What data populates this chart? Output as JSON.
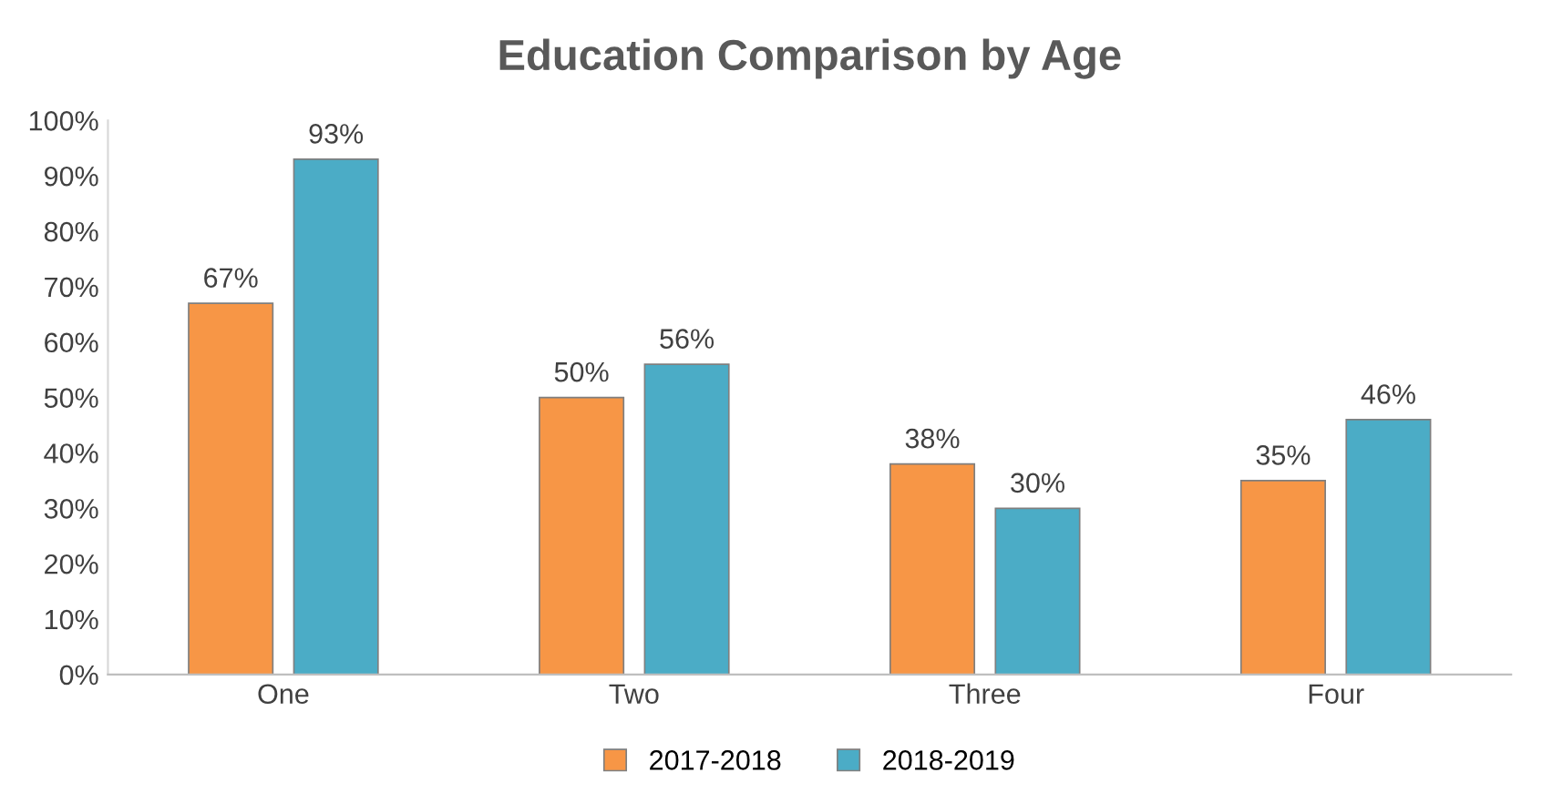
{
  "chart_data": {
    "type": "bar",
    "title": "Education Comparison by Age",
    "categories": [
      "One",
      "Two",
      "Three",
      "Four"
    ],
    "series": [
      {
        "name": "2017-2018",
        "color": "#f79646",
        "values": [
          67,
          50,
          38,
          35
        ],
        "value_labels": [
          "67%",
          "50%",
          "38%",
          "35%"
        ]
      },
      {
        "name": "2018-2019",
        "color": "#4bacc6",
        "values": [
          93,
          56,
          30,
          46
        ],
        "value_labels": [
          "93%",
          "56%",
          "30%",
          "46%"
        ]
      }
    ],
    "ylim": [
      0,
      100
    ],
    "yticks": [
      {
        "value": 0,
        "label": "0%"
      },
      {
        "value": 10,
        "label": "10%"
      },
      {
        "value": 20,
        "label": "20%"
      },
      {
        "value": 30,
        "label": "30%"
      },
      {
        "value": 40,
        "label": "40%"
      },
      {
        "value": 50,
        "label": "50%"
      },
      {
        "value": 60,
        "label": "60%"
      },
      {
        "value": 70,
        "label": "70%"
      },
      {
        "value": 80,
        "label": "80%"
      },
      {
        "value": 90,
        "label": "90%"
      },
      {
        "value": 100,
        "label": "100%"
      }
    ],
    "grid": false,
    "legend": "bottom"
  }
}
